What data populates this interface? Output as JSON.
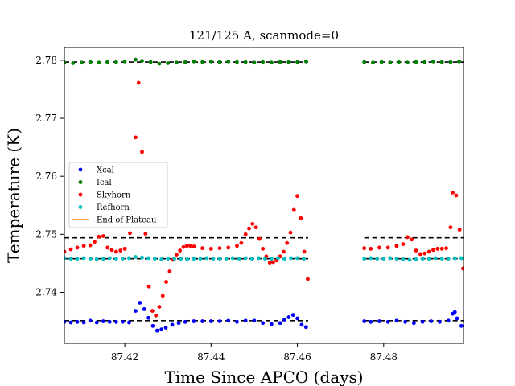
{
  "chart_data": {
    "type": "scatter",
    "title": "121/125 A, scanmode=0",
    "xlabel": "Time Since APCO (days)",
    "ylabel": "Temperature (K)",
    "xlim": [
      87.406,
      87.4985
    ],
    "ylim": [
      2.7312,
      2.7822
    ],
    "xticks": [
      87.42,
      87.44,
      87.46,
      87.48
    ],
    "xtick_labels": [
      "87.42",
      "87.44",
      "87.46",
      "87.48"
    ],
    "yticks": [
      2.74,
      2.75,
      2.76,
      2.77,
      2.78
    ],
    "ytick_labels": [
      "2.74",
      "2.75",
      "2.76",
      "2.77",
      "2.78"
    ],
    "grid": false,
    "legend_position": "center-left",
    "plateau_lines_y": [
      2.7797,
      2.7494,
      2.7458,
      2.7351
    ],
    "gap": [
      87.4625,
      87.4755
    ],
    "series": [
      {
        "name": "Xcal",
        "color": "#0000ff",
        "marker": "dot",
        "x": [
          87.406,
          87.4075,
          87.409,
          87.4105,
          87.412,
          87.4135,
          87.415,
          87.4165,
          87.418,
          87.4195,
          87.421,
          87.4225,
          87.4235,
          87.4245,
          87.4255,
          87.4265,
          87.4275,
          87.4285,
          87.4295,
          87.431,
          87.4325,
          87.434,
          87.436,
          87.438,
          87.44,
          87.442,
          87.444,
          87.446,
          87.448,
          87.45,
          87.452,
          87.454,
          87.456,
          87.457,
          87.458,
          87.459,
          87.46,
          87.461,
          87.462,
          87.4755,
          87.477,
          87.479,
          87.481,
          87.483,
          87.485,
          87.487,
          87.489,
          87.491,
          87.493,
          87.495,
          87.496,
          87.4965,
          87.497,
          87.498
        ],
        "y": [
          2.7349,
          2.7348,
          2.7349,
          2.7348,
          2.7351,
          2.7348,
          2.735,
          2.7349,
          2.7349,
          2.7349,
          2.7348,
          2.7368,
          2.7382,
          2.7371,
          2.7356,
          2.7342,
          2.7334,
          2.7336,
          2.7339,
          2.7344,
          2.7347,
          2.7349,
          2.735,
          2.735,
          2.735,
          2.735,
          2.7351,
          2.7349,
          2.7351,
          2.7351,
          2.7347,
          2.7345,
          2.7347,
          2.7353,
          2.7357,
          2.7361,
          2.7355,
          2.7344,
          2.734,
          2.735,
          2.7349,
          2.735,
          2.7349,
          2.7351,
          2.7349,
          2.7347,
          2.7349,
          2.735,
          2.7349,
          2.7351,
          2.7363,
          2.7366,
          2.7355,
          2.7342
        ]
      },
      {
        "name": "Ical",
        "color": "#008000",
        "marker": "dot",
        "x": [
          87.406,
          87.408,
          87.41,
          87.412,
          87.414,
          87.416,
          87.418,
          87.42,
          87.4225,
          87.424,
          87.426,
          87.428,
          87.43,
          87.432,
          87.434,
          87.436,
          87.438,
          87.44,
          87.442,
          87.444,
          87.446,
          87.448,
          87.45,
          87.452,
          87.454,
          87.456,
          87.458,
          87.46,
          87.462,
          87.4755,
          87.4775,
          87.4795,
          87.4815,
          87.4835,
          87.4855,
          87.4875,
          87.4895,
          87.4915,
          87.4935,
          87.4955,
          87.4975
        ],
        "y": [
          2.7796,
          2.7795,
          2.7796,
          2.7797,
          2.7796,
          2.7797,
          2.7797,
          2.7798,
          2.7801,
          2.7799,
          2.7797,
          2.7794,
          2.7795,
          2.7796,
          2.7797,
          2.7798,
          2.7797,
          2.7798,
          2.7797,
          2.7798,
          2.7797,
          2.7797,
          2.7796,
          2.7797,
          2.7796,
          2.7797,
          2.7797,
          2.7797,
          2.7798,
          2.7797,
          2.7796,
          2.7797,
          2.7796,
          2.7797,
          2.7796,
          2.7797,
          2.7797,
          2.7798,
          2.7797,
          2.7797,
          2.7798
        ]
      },
      {
        "name": "Skyhorn",
        "color": "#ff0000",
        "marker": "dot",
        "x": [
          87.406,
          87.4075,
          87.409,
          87.4105,
          87.412,
          87.413,
          87.414,
          87.415,
          87.416,
          87.417,
          87.418,
          87.419,
          87.42,
          87.4212,
          87.4225,
          87.4232,
          87.424,
          87.4248,
          87.4256,
          87.4264,
          87.4272,
          87.428,
          87.4288,
          87.4296,
          87.4304,
          87.4312,
          87.432,
          87.4328,
          87.4336,
          87.4344,
          87.4352,
          87.436,
          87.438,
          87.44,
          87.442,
          87.444,
          87.446,
          87.447,
          87.448,
          87.4488,
          87.4496,
          87.4504,
          87.4512,
          87.452,
          87.4528,
          87.4536,
          87.4544,
          87.4552,
          87.456,
          87.4568,
          87.4576,
          87.4584,
          87.4592,
          87.46,
          87.4608,
          87.4616,
          87.4624,
          87.4755,
          87.477,
          87.479,
          87.481,
          87.483,
          87.4845,
          87.4855,
          87.4865,
          87.4875,
          87.4885,
          87.4895,
          87.4905,
          87.4915,
          87.4925,
          87.4935,
          87.4945,
          87.4955,
          87.496,
          87.4968,
          87.4976,
          87.4984
        ],
        "y": [
          2.747,
          2.7474,
          2.7477,
          2.748,
          2.7481,
          2.7487,
          2.7496,
          2.7497,
          2.7477,
          2.7473,
          2.747,
          2.7472,
          2.7475,
          2.7502,
          2.7667,
          2.7761,
          2.7642,
          2.7501,
          2.741,
          2.7368,
          2.736,
          2.7375,
          2.7394,
          2.7418,
          2.7436,
          2.7456,
          2.7465,
          2.7472,
          2.7478,
          2.748,
          2.748,
          2.7479,
          2.7476,
          2.7475,
          2.7476,
          2.7477,
          2.748,
          2.7485,
          2.75,
          2.751,
          2.7518,
          2.7512,
          2.7492,
          2.7475,
          2.7462,
          2.7451,
          2.7452,
          2.7455,
          2.7462,
          2.747,
          2.7485,
          2.7503,
          2.7542,
          2.7566,
          2.7528,
          2.747,
          2.7423,
          2.7476,
          2.7475,
          2.7477,
          2.7477,
          2.748,
          2.7483,
          2.7495,
          2.7491,
          2.7472,
          2.7466,
          2.7467,
          2.747,
          2.7473,
          2.7475,
          2.7475,
          2.7476,
          2.7512,
          2.7572,
          2.7567,
          2.7508,
          2.7441
        ]
      },
      {
        "name": "Refhorn",
        "color": "#00bfbf",
        "marker": "dot",
        "x": [
          87.406,
          87.4075,
          87.409,
          87.4105,
          87.412,
          87.4135,
          87.415,
          87.4165,
          87.418,
          87.4195,
          87.421,
          87.4225,
          87.424,
          87.4255,
          87.427,
          87.4285,
          87.43,
          87.4315,
          87.433,
          87.4345,
          87.436,
          87.4375,
          87.439,
          87.4405,
          87.442,
          87.4435,
          87.445,
          87.4465,
          87.448,
          87.4495,
          87.451,
          87.4525,
          87.454,
          87.4555,
          87.457,
          87.4585,
          87.46,
          87.4615,
          87.4755,
          87.477,
          87.4785,
          87.48,
          87.4815,
          87.483,
          87.4845,
          87.486,
          87.4875,
          87.489,
          87.4905,
          87.492,
          87.4935,
          87.495,
          87.4965,
          87.498
        ],
        "y": [
          2.7459,
          2.7458,
          2.7458,
          2.7459,
          2.7458,
          2.7457,
          2.7458,
          2.7459,
          2.7458,
          2.7458,
          2.7459,
          2.7461,
          2.746,
          2.7459,
          2.7458,
          2.7457,
          2.7458,
          2.7458,
          2.7458,
          2.7457,
          2.7458,
          2.7458,
          2.7459,
          2.7458,
          2.7458,
          2.7458,
          2.7459,
          2.7458,
          2.7459,
          2.7458,
          2.7459,
          2.7458,
          2.7458,
          2.7459,
          2.7458,
          2.7459,
          2.7459,
          2.7458,
          2.7458,
          2.7459,
          2.7458,
          2.7458,
          2.7459,
          2.7458,
          2.7457,
          2.7456,
          2.7457,
          2.7458,
          2.7458,
          2.7459,
          2.7458,
          2.7458,
          2.7459,
          2.7459
        ]
      },
      {
        "name": "End of Plateau",
        "color": "#ff7f0e",
        "marker": "line",
        "x": [],
        "y": []
      }
    ]
  }
}
